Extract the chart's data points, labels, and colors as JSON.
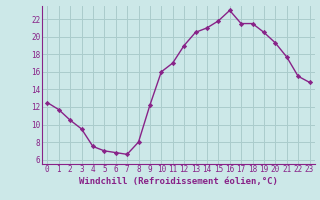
{
  "x": [
    0,
    1,
    2,
    3,
    4,
    5,
    6,
    7,
    8,
    9,
    10,
    11,
    12,
    13,
    14,
    15,
    16,
    17,
    18,
    19,
    20,
    21,
    22,
    23
  ],
  "y": [
    12.5,
    11.7,
    10.5,
    9.5,
    7.5,
    7.0,
    6.8,
    6.6,
    8.0,
    12.2,
    16.0,
    17.0,
    19.0,
    20.5,
    21.0,
    21.8,
    23.0,
    21.5,
    21.5,
    20.5,
    19.3,
    17.7,
    15.5,
    14.8
  ],
  "xlim": [
    -0.5,
    23.5
  ],
  "ylim": [
    5.5,
    23.5
  ],
  "yticks": [
    6,
    8,
    10,
    12,
    14,
    16,
    18,
    20,
    22
  ],
  "xticks": [
    0,
    1,
    2,
    3,
    4,
    5,
    6,
    7,
    8,
    9,
    10,
    11,
    12,
    13,
    14,
    15,
    16,
    17,
    18,
    19,
    20,
    21,
    22,
    23
  ],
  "xlabel": "Windchill (Refroidissement éolien,°C)",
  "line_color": "#882288",
  "marker": "D",
  "markersize": 2.2,
  "linewidth": 1.0,
  "bg_color": "#cce8e8",
  "grid_color": "#aacccc",
  "tick_label_color": "#882288",
  "xlabel_color": "#882288",
  "tick_fontsize": 5.5,
  "xlabel_fontsize": 6.5
}
